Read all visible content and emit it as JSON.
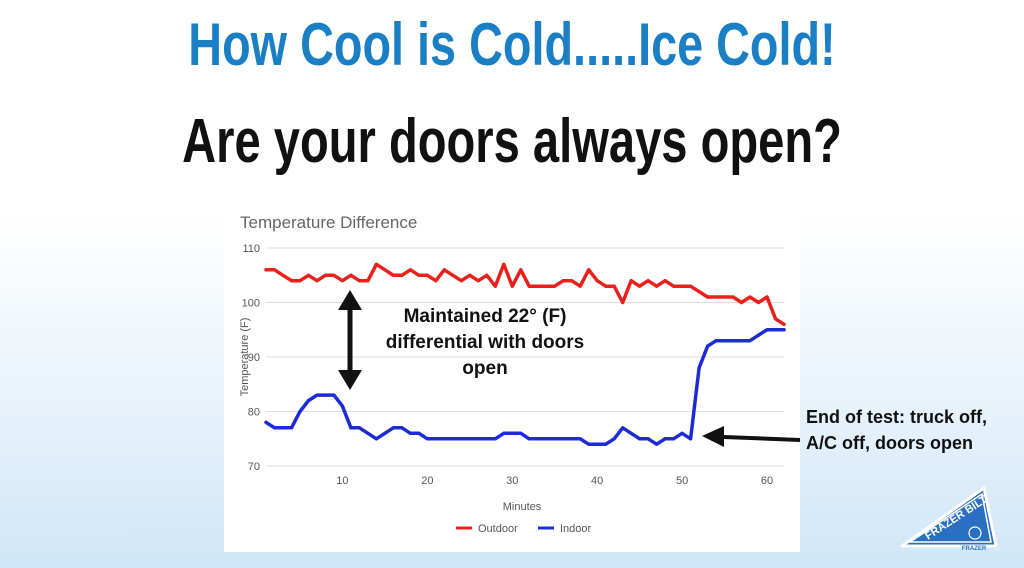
{
  "slide": {
    "title": "How Cool is Cold.....Ice Cold!",
    "subtitle": "Are your doors always open?"
  },
  "annotations": {
    "maintained": "Maintained 22° (F) differential with doors open",
    "end_of_test": "End of test: truck off, A/C off, doors open"
  },
  "logo": {
    "brand": "FRAZER BILT",
    "sub": "FRAZER"
  },
  "colors": {
    "title": "#1a7fc4",
    "outdoor": "#e8211c",
    "indoor": "#1c2bd6",
    "arrow": "#111111"
  },
  "chart_data": {
    "type": "line",
    "title": "Temperature Difference",
    "xlabel": "Minutes",
    "ylabel": "Temperature (F)",
    "xlim": [
      1,
      62
    ],
    "ylim": [
      70,
      110
    ],
    "xticks": [
      10,
      20,
      30,
      40,
      50,
      60
    ],
    "yticks": [
      70,
      80,
      90,
      100,
      110
    ],
    "grid": true,
    "legend": "bottom",
    "x": [
      1,
      2,
      3,
      4,
      5,
      6,
      7,
      8,
      9,
      10,
      11,
      12,
      13,
      14,
      15,
      16,
      17,
      18,
      19,
      20,
      21,
      22,
      23,
      24,
      25,
      26,
      27,
      28,
      29,
      30,
      31,
      32,
      33,
      34,
      35,
      36,
      37,
      38,
      39,
      40,
      41,
      42,
      43,
      44,
      45,
      46,
      47,
      48,
      49,
      50,
      51,
      52,
      53,
      54,
      55,
      56,
      57,
      58,
      59,
      60,
      61,
      62
    ],
    "series": [
      {
        "name": "Outdoor",
        "color": "#e8211c",
        "values": [
          106,
          106,
          105,
          104,
          104,
          105,
          104,
          105,
          105,
          104,
          105,
          104,
          104,
          107,
          106,
          105,
          105,
          106,
          105,
          105,
          104,
          106,
          105,
          104,
          105,
          104,
          105,
          103,
          107,
          103,
          106,
          103,
          103,
          103,
          103,
          104,
          104,
          103,
          106,
          104,
          103,
          103,
          100,
          104,
          103,
          104,
          103,
          104,
          103,
          103,
          103,
          102,
          101,
          101,
          101,
          101,
          100,
          101,
          100,
          101,
          97,
          96
        ]
      },
      {
        "name": "Indoor",
        "color": "#1c2bd6",
        "values": [
          78,
          77,
          77,
          77,
          80,
          82,
          83,
          83,
          83,
          81,
          77,
          77,
          76,
          75,
          76,
          77,
          77,
          76,
          76,
          75,
          75,
          75,
          75,
          75,
          75,
          75,
          75,
          75,
          76,
          76,
          76,
          75,
          75,
          75,
          75,
          75,
          75,
          75,
          74,
          74,
          74,
          75,
          77,
          76,
          75,
          75,
          74,
          75,
          75,
          76,
          75,
          88,
          92,
          93,
          93,
          93,
          93,
          93,
          94,
          95,
          95,
          95
        ]
      }
    ]
  }
}
